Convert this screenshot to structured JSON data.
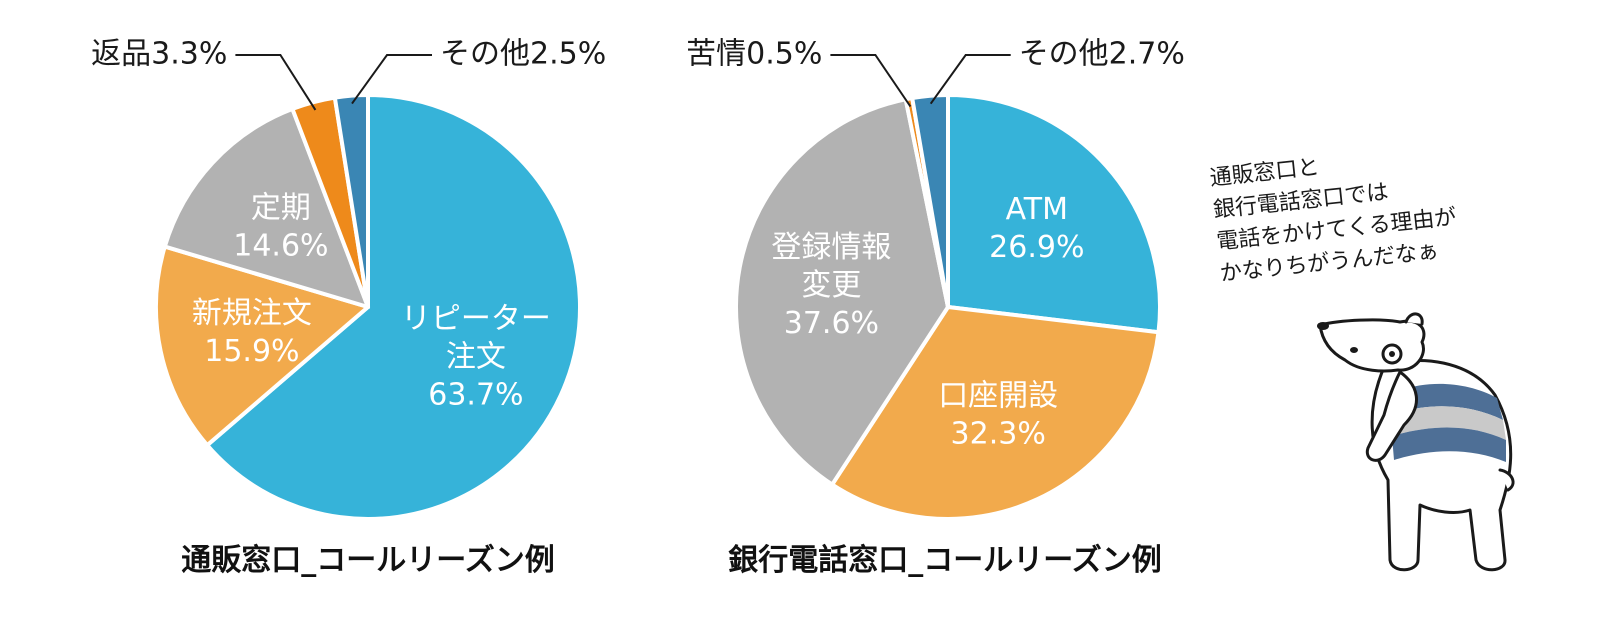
{
  "colors": {
    "blue": "#36b3d9",
    "orange_light": "#f2aa4c",
    "gray": "#b2b2b2",
    "orange": "#ee8a1b",
    "steel_blue": "#3a86b4",
    "stripe_blue": "#4e6f96",
    "stripe_gray": "#c9c9c9"
  },
  "chart_data": [
    {
      "type": "pie",
      "title": "通販窓口_コールリーズン例",
      "slices": [
        {
          "label": "リピーター注文",
          "value": 63.7,
          "lines": [
            "リピーター",
            "注文",
            "63.7%"
          ],
          "color": "#36b3d9"
        },
        {
          "label": "新規注文",
          "value": 15.9,
          "lines": [
            "新規注文",
            "15.9%"
          ],
          "color": "#f2aa4c"
        },
        {
          "label": "定期",
          "value": 14.6,
          "lines": [
            "定期",
            "14.6%"
          ],
          "color": "#b2b2b2"
        },
        {
          "label": "返品",
          "value": 3.3,
          "lines": [
            "返品3.3%"
          ],
          "color": "#ee8a1b",
          "callout": "left"
        },
        {
          "label": "その他",
          "value": 2.5,
          "lines": [
            "その他2.5%"
          ],
          "color": "#3a86b4",
          "callout": "right"
        }
      ]
    },
    {
      "type": "pie",
      "title": "銀行電話窓口_コールリーズン例",
      "slices": [
        {
          "label": "ATM",
          "value": 26.9,
          "lines": [
            "ATM",
            "26.9%"
          ],
          "color": "#36b3d9"
        },
        {
          "label": "口座開設",
          "value": 32.3,
          "lines": [
            "口座開設",
            "32.3%"
          ],
          "color": "#f2aa4c"
        },
        {
          "label": "登録情報変更",
          "value": 37.6,
          "lines": [
            "登録情報",
            "変更",
            "37.6%"
          ],
          "color": "#b2b2b2"
        },
        {
          "label": "苦情",
          "value": 0.5,
          "lines": [
            "苦情0.5%"
          ],
          "color": "#ee8a1b",
          "callout": "left"
        },
        {
          "label": "その他",
          "value": 2.7,
          "lines": [
            "その他2.7%"
          ],
          "color": "#3a86b4",
          "callout": "right"
        }
      ]
    }
  ],
  "bear_note": {
    "lines": [
      "通販窓口と",
      "銀行電話窓口では",
      "電話をかけてくる理由が",
      "かなりちがうんだなぁ"
    ]
  }
}
